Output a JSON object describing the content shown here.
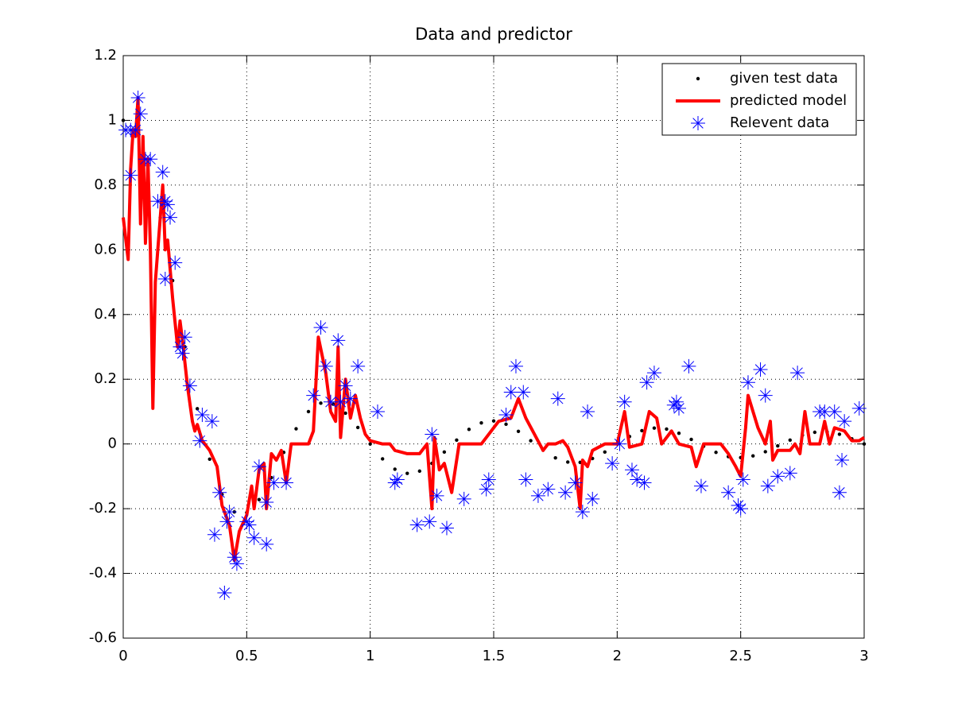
{
  "chart_data": {
    "type": "line",
    "title": "Data and predictor",
    "xlim": [
      0,
      3
    ],
    "ylim": [
      -0.6,
      1.2
    ],
    "xticks": [
      0,
      0.5,
      1,
      1.5,
      2,
      2.5,
      3
    ],
    "yticks": [
      -0.6,
      -0.4,
      -0.2,
      0,
      0.2,
      0.4,
      0.6,
      0.8,
      1,
      1.2
    ],
    "grid": true,
    "legend": "top-right",
    "series": [
      {
        "name": "given test data",
        "color": "#000000",
        "style": "dots",
        "x": [
          0,
          0.05,
          0.1,
          0.15,
          0.2,
          0.25,
          0.3,
          0.35,
          0.4,
          0.45,
          0.5,
          0.55,
          0.6,
          0.65,
          0.7,
          0.75,
          0.8,
          0.85,
          0.9,
          0.95,
          1,
          1.05,
          1.1,
          1.15,
          1.2,
          1.25,
          1.3,
          1.35,
          1.4,
          1.45,
          1.5,
          1.55,
          1.6,
          1.65,
          1.7,
          1.75,
          1.8,
          1.85,
          1.9,
          1.95,
          2,
          2.05,
          2.1,
          2.15,
          2.2,
          2.25,
          2.3,
          2.35,
          2.4,
          2.45,
          2.5,
          2.55,
          2.6,
          2.65,
          2.7,
          2.75,
          2.8,
          2.85,
          2.9,
          2.95,
          3
        ],
        "values": [
          1,
          0.963,
          0.859,
          0.699,
          0.505,
          0.3,
          0.109,
          -0.047,
          -0.156,
          -0.21,
          -0.212,
          -0.172,
          -0.104,
          -0.026,
          0.047,
          0.1,
          0.126,
          0.123,
          0.095,
          0.051,
          0,
          -0.046,
          -0.078,
          -0.091,
          -0.084,
          -0.06,
          -0.025,
          0.012,
          0.045,
          0.065,
          0.071,
          0.061,
          0.039,
          0.01,
          -0.019,
          -0.043,
          -0.056,
          -0.057,
          -0.045,
          -0.025,
          0,
          0.023,
          0.041,
          0.049,
          0.046,
          0.033,
          0.014,
          -0.007,
          -0.026,
          -0.039,
          -0.042,
          -0.037,
          -0.024,
          -0.006,
          0.012,
          0.027,
          0.036,
          0.037,
          0.03,
          0.016,
          0
        ]
      },
      {
        "name": "predicted model",
        "color": "#ff0000",
        "style": "line",
        "x": [
          0,
          0.02,
          0.03,
          0.04,
          0.05,
          0.06,
          0.07,
          0.08,
          0.09,
          0.1,
          0.11,
          0.12,
          0.13,
          0.15,
          0.16,
          0.17,
          0.18,
          0.2,
          0.22,
          0.23,
          0.24,
          0.26,
          0.28,
          0.29,
          0.3,
          0.32,
          0.35,
          0.38,
          0.4,
          0.43,
          0.45,
          0.47,
          0.5,
          0.52,
          0.53,
          0.55,
          0.57,
          0.58,
          0.6,
          0.62,
          0.64,
          0.66,
          0.68,
          0.75,
          0.77,
          0.79,
          0.82,
          0.84,
          0.86,
          0.87,
          0.88,
          0.9,
          0.92,
          0.94,
          0.96,
          0.98,
          1,
          1.05,
          1.08,
          1.1,
          1.15,
          1.2,
          1.23,
          1.25,
          1.26,
          1.28,
          1.3,
          1.33,
          1.36,
          1.45,
          1.5,
          1.52,
          1.57,
          1.6,
          1.63,
          1.7,
          1.72,
          1.75,
          1.78,
          1.8,
          1.83,
          1.85,
          1.86,
          1.88,
          1.9,
          1.95,
          2,
          2.03,
          2.05,
          2.1,
          2.13,
          2.16,
          2.18,
          2.22,
          2.25,
          2.3,
          2.32,
          2.35,
          2.42,
          2.45,
          2.48,
          2.5,
          2.52,
          2.53,
          2.57,
          2.6,
          2.62,
          2.63,
          2.65,
          2.7,
          2.72,
          2.74,
          2.76,
          2.78,
          2.82,
          2.84,
          2.86,
          2.88,
          2.92,
          2.95,
          2.98,
          3
        ],
        "values": [
          0.7,
          0.57,
          0.85,
          0.97,
          0.95,
          1.07,
          0.68,
          0.95,
          0.62,
          0.88,
          0.6,
          0.11,
          0.5,
          0.7,
          0.8,
          0.6,
          0.63,
          0.45,
          0.3,
          0.38,
          0.32,
          0.18,
          0.07,
          0.04,
          0.06,
          0.01,
          -0.02,
          -0.07,
          -0.19,
          -0.25,
          -0.36,
          -0.27,
          -0.22,
          -0.13,
          -0.2,
          -0.08,
          -0.06,
          -0.2,
          -0.03,
          -0.05,
          -0.02,
          -0.12,
          0,
          0,
          0.04,
          0.33,
          0.22,
          0.1,
          0.07,
          0.3,
          0.02,
          0.2,
          0.08,
          0.15,
          0.08,
          0.03,
          0.01,
          0,
          0,
          -0.02,
          -0.03,
          -0.03,
          0,
          -0.2,
          0.02,
          -0.08,
          -0.06,
          -0.15,
          0,
          0,
          0.05,
          0.07,
          0.08,
          0.14,
          0.08,
          -0.02,
          0,
          0,
          0.01,
          -0.01,
          -0.07,
          -0.2,
          -0.05,
          -0.07,
          -0.02,
          0,
          0,
          0.1,
          -0.01,
          0,
          0.1,
          0.08,
          0,
          0.04,
          0,
          -0.01,
          -0.07,
          0,
          0,
          -0.03,
          -0.07,
          -0.1,
          0.05,
          0.15,
          0.05,
          0,
          0.07,
          -0.05,
          -0.02,
          -0.02,
          0,
          -0.03,
          0.1,
          0,
          0,
          0.07,
          0,
          0.05,
          0.04,
          0.01,
          0.01,
          0.02
        ]
      },
      {
        "name": "Relevent data",
        "color": "#0000ff",
        "style": "stars",
        "x": [
          0.01,
          0.03,
          0.03,
          0.05,
          0.06,
          0.07,
          0.09,
          0.11,
          0.14,
          0.16,
          0.17,
          0.18,
          0.19,
          0.17,
          0.21,
          0.23,
          0.24,
          0.25,
          0.27,
          0.31,
          0.32,
          0.36,
          0.37,
          0.39,
          0.41,
          0.42,
          0.43,
          0.45,
          0.46,
          0.5,
          0.51,
          0.53,
          0.55,
          0.58,
          0.58,
          0.61,
          0.66,
          0.77,
          0.8,
          0.82,
          0.84,
          0.87,
          0.88,
          0.9,
          0.92,
          0.95,
          1.03,
          1.1,
          1.11,
          1.19,
          1.24,
          1.25,
          1.27,
          1.31,
          1.38,
          1.47,
          1.48,
          1.55,
          1.57,
          1.59,
          1.62,
          1.63,
          1.68,
          1.72,
          1.76,
          1.79,
          1.83,
          1.86,
          1.88,
          1.9,
          1.98,
          2.01,
          2.03,
          2.06,
          2.08,
          2.11,
          2.12,
          2.15,
          2.23,
          2.24,
          2.25,
          2.29,
          2.34,
          2.45,
          2.49,
          2.5,
          2.51,
          2.53,
          2.58,
          2.6,
          2.61,
          2.65,
          2.7,
          2.73,
          2.82,
          2.84,
          2.88,
          2.9,
          2.91,
          2.92,
          2.98
        ],
        "values": [
          0.97,
          0.97,
          0.83,
          0.97,
          1.07,
          1.02,
          0.88,
          0.88,
          0.75,
          0.84,
          0.75,
          0.74,
          0.7,
          0.51,
          0.56,
          0.3,
          0.28,
          0.33,
          0.18,
          0.01,
          0.09,
          0.07,
          -0.28,
          -0.15,
          -0.46,
          -0.24,
          -0.21,
          -0.35,
          -0.37,
          -0.24,
          -0.25,
          -0.29,
          -0.07,
          -0.31,
          -0.18,
          -0.12,
          -0.12,
          0.15,
          0.36,
          0.24,
          0.13,
          0.32,
          0.13,
          0.18,
          0.14,
          0.24,
          0.1,
          -0.12,
          -0.11,
          -0.25,
          -0.24,
          0.03,
          -0.16,
          -0.26,
          -0.17,
          -0.14,
          -0.11,
          0.09,
          0.16,
          0.24,
          0.16,
          -0.11,
          -0.16,
          -0.14,
          0.14,
          -0.15,
          -0.12,
          -0.21,
          0.1,
          -0.17,
          -0.06,
          0,
          0.13,
          -0.08,
          -0.11,
          -0.12,
          0.19,
          0.22,
          0.12,
          0.13,
          0.11,
          0.24,
          -0.13,
          -0.15,
          -0.19,
          -0.2,
          -0.11,
          0.19,
          0.23,
          0.15,
          -0.13,
          -0.1,
          -0.09,
          0.22,
          0.1,
          0.1,
          0.1,
          -0.15,
          -0.05,
          0.07,
          0.11
        ]
      }
    ]
  }
}
